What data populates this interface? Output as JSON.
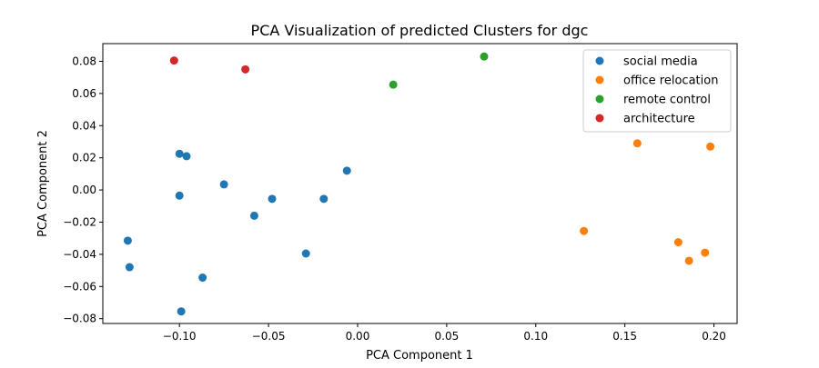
{
  "chart_data": {
    "type": "scatter",
    "title": "PCA Visualization of predicted Clusters for dgc",
    "xlabel": "PCA Component 1",
    "ylabel": "PCA Component 2",
    "xlim": [
      -0.143,
      0.213
    ],
    "ylim": [
      -0.083,
      0.091
    ],
    "x_ticks": [
      -0.1,
      -0.05,
      0.0,
      0.05,
      0.1,
      0.15,
      0.2
    ],
    "x_tick_labels": [
      "−0.10",
      "−0.05",
      "0.00",
      "0.05",
      "0.10",
      "0.15",
      "0.20"
    ],
    "y_ticks": [
      -0.08,
      -0.06,
      -0.04,
      -0.02,
      0.0,
      0.02,
      0.04,
      0.06,
      0.08
    ],
    "y_tick_labels": [
      "−0.08",
      "−0.06",
      "−0.04",
      "−0.02",
      "0.00",
      "0.02",
      "0.04",
      "0.06",
      "0.08"
    ],
    "grid": false,
    "legend_position": "top-right",
    "series": [
      {
        "name": "social media",
        "color": "#1f77b4",
        "points": [
          [
            -0.1,
            0.0225
          ],
          [
            -0.096,
            0.021
          ],
          [
            -0.075,
            0.0035
          ],
          [
            -0.1,
            -0.0035
          ],
          [
            -0.006,
            0.012
          ],
          [
            -0.048,
            -0.0055
          ],
          [
            -0.019,
            -0.0055
          ],
          [
            -0.058,
            -0.016
          ],
          [
            -0.129,
            -0.0315
          ],
          [
            -0.029,
            -0.0395
          ],
          [
            -0.128,
            -0.048
          ],
          [
            -0.087,
            -0.0545
          ],
          [
            -0.099,
            -0.0755
          ]
        ]
      },
      {
        "name": "office relocation",
        "color": "#ff7f0e",
        "points": [
          [
            0.157,
            0.029
          ],
          [
            0.198,
            0.027
          ],
          [
            0.127,
            -0.0255
          ],
          [
            0.18,
            -0.0325
          ],
          [
            0.195,
            -0.039
          ],
          [
            0.186,
            -0.044
          ]
        ]
      },
      {
        "name": "remote control",
        "color": "#2ca02c",
        "points": [
          [
            0.02,
            0.0655
          ],
          [
            0.071,
            0.083
          ]
        ]
      },
      {
        "name": "architecture",
        "color": "#d62728",
        "points": [
          [
            -0.103,
            0.0805
          ],
          [
            -0.063,
            0.075
          ]
        ]
      }
    ]
  }
}
